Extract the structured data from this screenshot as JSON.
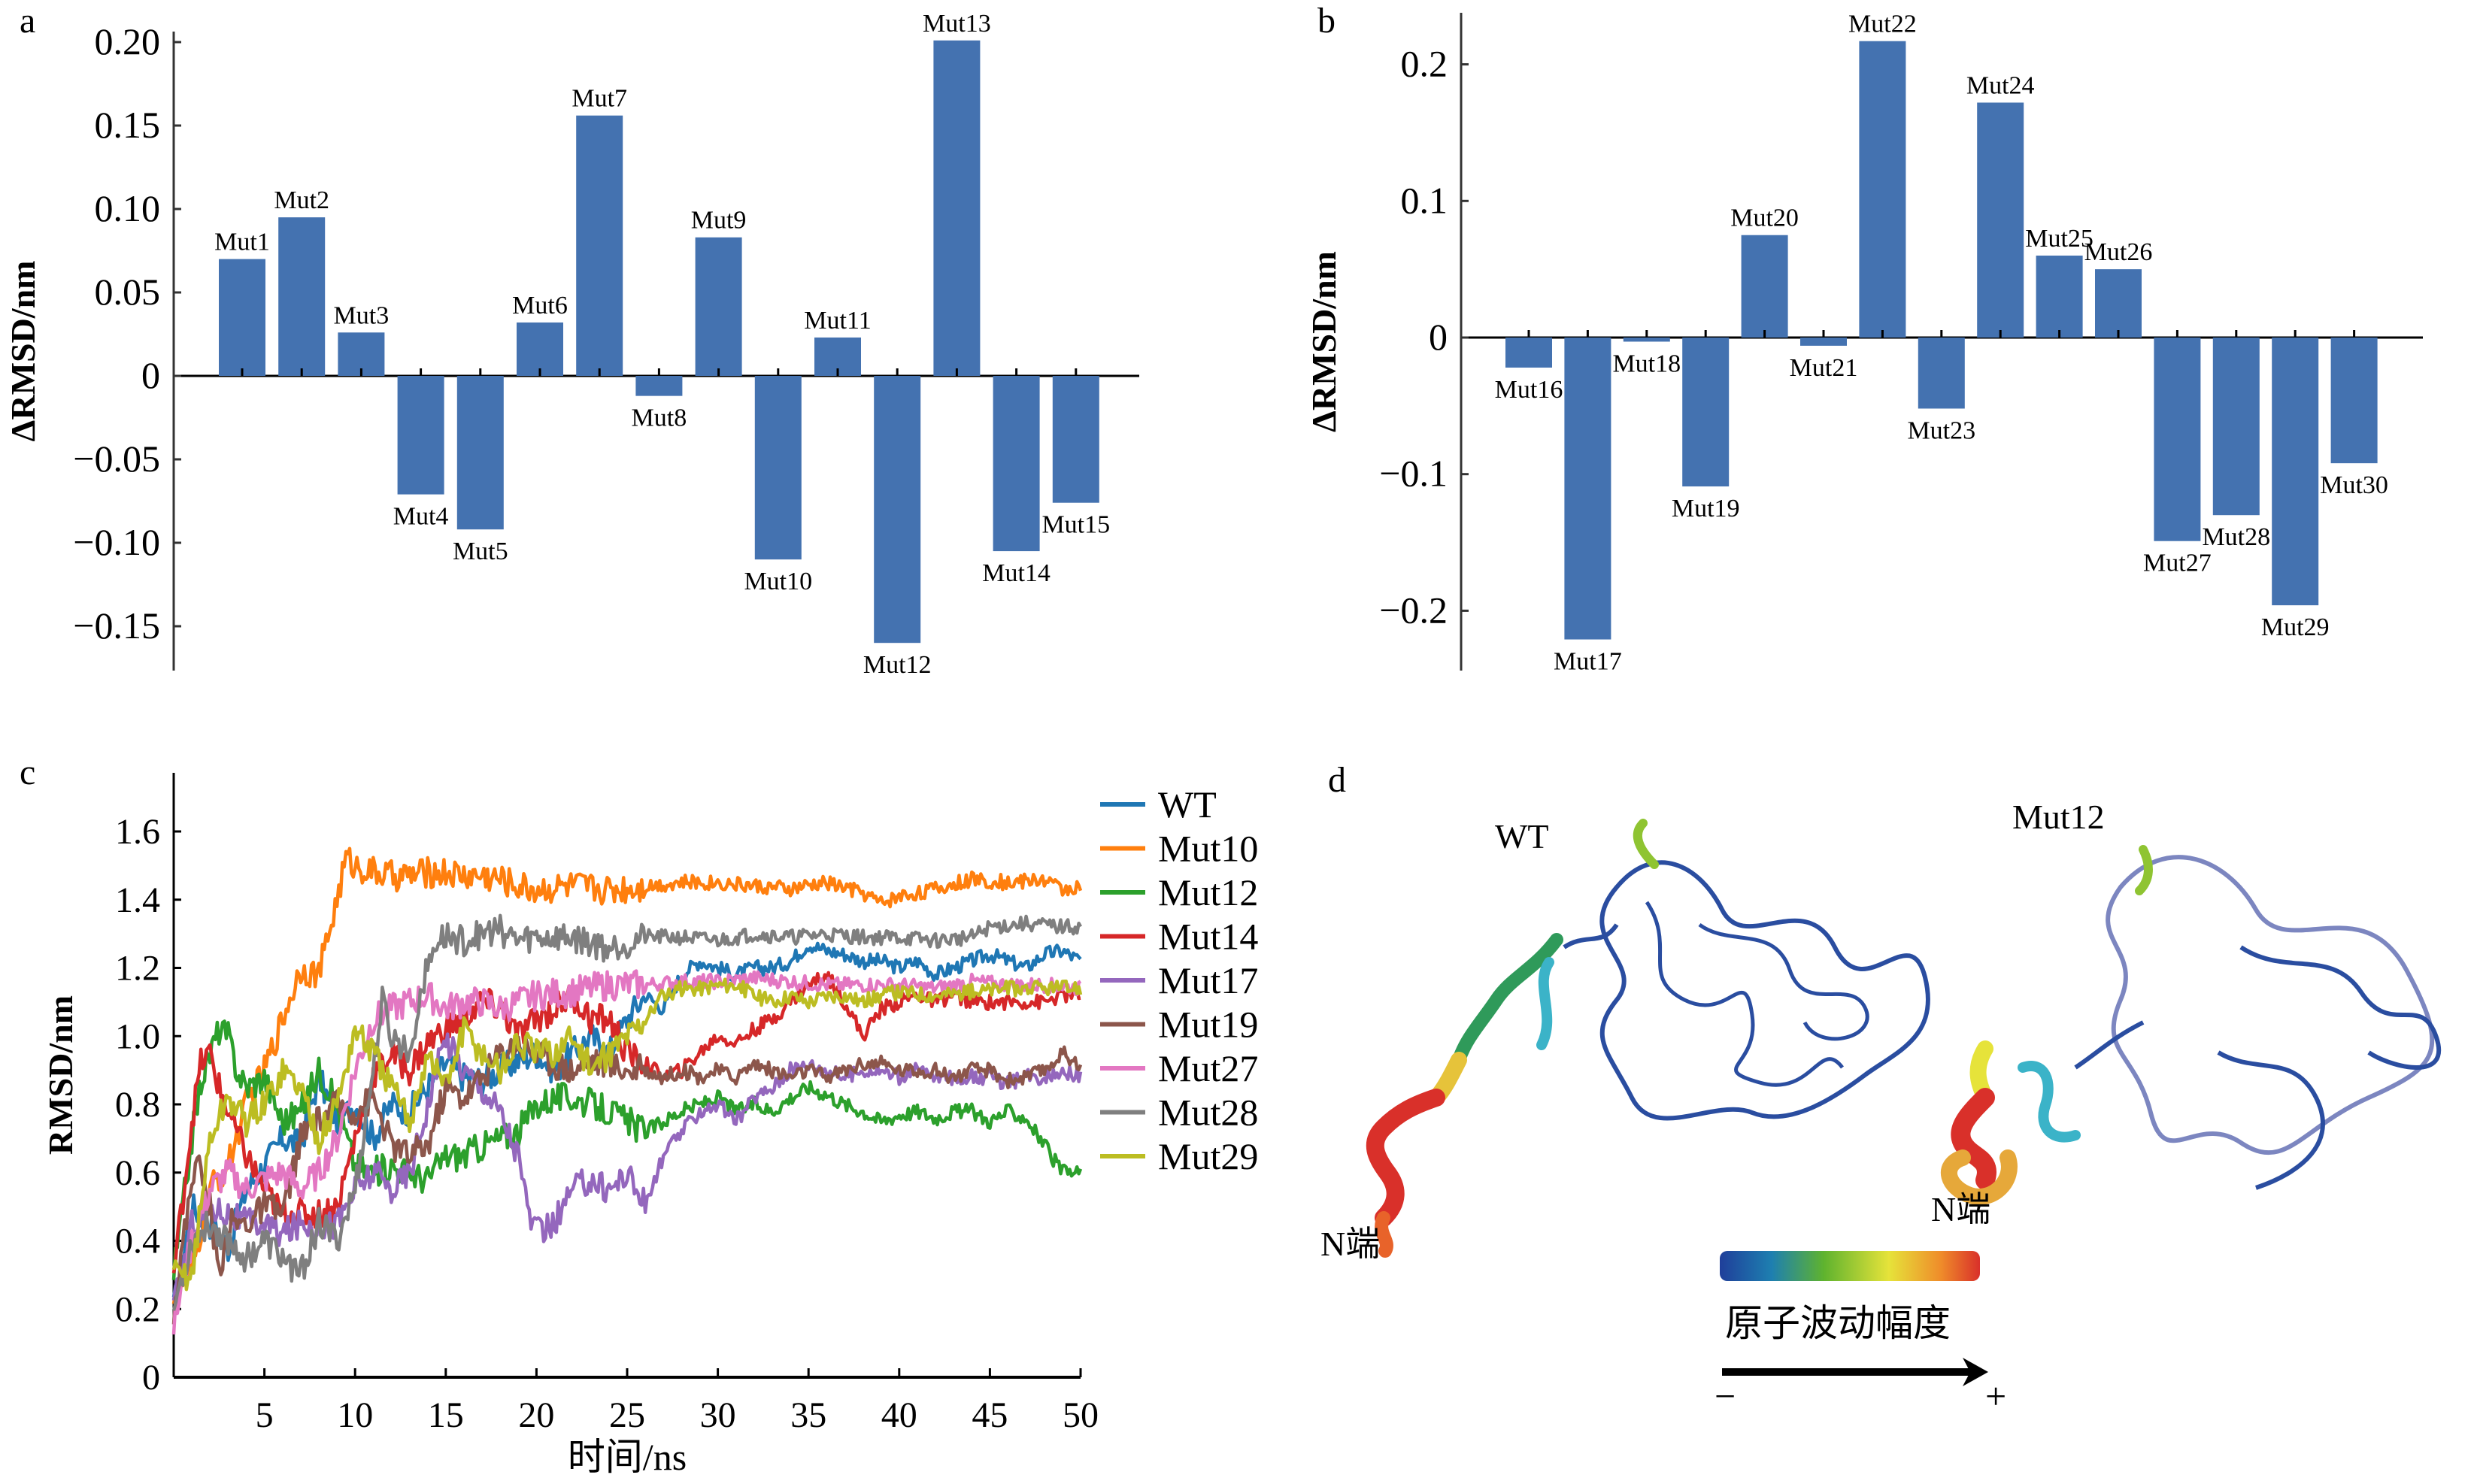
{
  "figure": {
    "panels": [
      "a",
      "b",
      "c",
      "d"
    ]
  },
  "chart_data": [
    {
      "panel": "a",
      "type": "bar",
      "title": "",
      "xlabel": "",
      "ylabel": "ΔRMSD/nm",
      "ylim": [
        -0.17,
        0.22
      ],
      "yticks": [
        -0.15,
        -0.1,
        -0.05,
        0,
        0.05,
        0.1,
        0.15,
        0.2
      ],
      "ytick_labels": [
        "−0.15",
        "−0.10",
        "−0.05",
        "0",
        "0.05",
        "0.10",
        "0.15",
        "0.20"
      ],
      "grid": false,
      "bar_color": "#4472b0",
      "categories": [
        "Mut1",
        "Mut2",
        "Mut3",
        "Mut4",
        "Mut5",
        "Mut6",
        "Mut7",
        "Mut8",
        "Mut9",
        "Mut10",
        "Mut11",
        "Mut12",
        "Mut13",
        "Mut14",
        "Mut15"
      ],
      "values": [
        0.07,
        0.095,
        0.026,
        -0.071,
        -0.092,
        0.032,
        0.156,
        -0.012,
        0.083,
        -0.11,
        0.023,
        -0.16,
        0.201,
        -0.105,
        -0.076
      ]
    },
    {
      "panel": "b",
      "type": "bar",
      "title": "",
      "xlabel": "",
      "ylabel": "ΔRMSD/nm",
      "ylim": [
        -0.24,
        0.24
      ],
      "yticks": [
        -0.2,
        -0.1,
        0,
        0.1,
        0.2
      ],
      "ytick_labels": [
        "−0.2",
        "−0.1",
        "0",
        "0.1",
        "0.2"
      ],
      "grid": false,
      "bar_color": "#4472b0",
      "categories": [
        "Mut16",
        "Mut17",
        "Mut18",
        "Mut19",
        "Mut20",
        "Mut21",
        "Mut22",
        "Mut23",
        "Mut24",
        "Mut25",
        "Mut26",
        "Mut27",
        "Mut28",
        "Mut29",
        "Mut30"
      ],
      "values": [
        -0.022,
        -0.221,
        -0.003,
        -0.109,
        0.075,
        -0.006,
        0.217,
        -0.052,
        0.172,
        0.06,
        0.05,
        -0.149,
        -0.13,
        -0.196,
        -0.092
      ]
    },
    {
      "panel": "c",
      "type": "line",
      "title": "",
      "xlabel": "时间/ns",
      "ylabel": "RMSD/nm",
      "xlim": [
        0,
        50
      ],
      "ylim": [
        0,
        1.75
      ],
      "xticks": [
        5,
        10,
        15,
        20,
        25,
        30,
        35,
        40,
        45,
        50
      ],
      "yticks": [
        0,
        0.2,
        0.4,
        0.6,
        0.8,
        1.0,
        1.2,
        1.4,
        1.6
      ],
      "ytick_labels": [
        "0",
        "0.2",
        "0.4",
        "0.6",
        "0.8",
        "1.0",
        "1.2",
        "1.4",
        "1.6"
      ],
      "grid": false,
      "legend_position": "right",
      "series": [
        {
          "name": "WT",
          "color": "#1f77b4",
          "x": [
            0,
            1,
            2,
            3,
            4,
            5,
            6,
            7,
            8,
            9,
            10,
            11,
            12,
            13,
            14,
            15,
            16,
            17,
            18,
            19,
            20,
            21,
            22,
            23,
            24,
            25,
            26,
            27,
            28,
            29,
            30,
            31,
            32,
            33,
            34,
            35,
            36,
            37,
            38,
            39,
            40,
            41,
            42,
            43,
            44,
            45,
            46,
            47,
            48,
            49,
            50
          ],
          "y": [
            0.2,
            0.5,
            0.45,
            0.38,
            0.55,
            0.62,
            0.7,
            0.68,
            0.88,
            0.75,
            0.8,
            0.7,
            0.8,
            0.78,
            0.85,
            0.92,
            0.88,
            0.87,
            0.9,
            0.93,
            0.95,
            0.9,
            0.95,
            1.0,
            0.95,
            1.05,
            1.12,
            1.08,
            1.18,
            1.22,
            1.2,
            1.18,
            1.2,
            1.2,
            1.22,
            1.27,
            1.25,
            1.24,
            1.22,
            1.22,
            1.2,
            1.22,
            1.18,
            1.2,
            1.22,
            1.24,
            1.22,
            1.2,
            1.24,
            1.25,
            1.22
          ]
        },
        {
          "name": "Mut10",
          "color": "#ff7f0e",
          "x": [
            0,
            1,
            2,
            3,
            4,
            5,
            6,
            7,
            8,
            9,
            9.5,
            10,
            11,
            12,
            13,
            14,
            15,
            16,
            17,
            18,
            19,
            20,
            22,
            24,
            26,
            28,
            30,
            32,
            34,
            36,
            38,
            39,
            40,
            42,
            44,
            46,
            48,
            49,
            50
          ],
          "y": [
            0.25,
            0.3,
            0.55,
            0.62,
            0.8,
            0.9,
            1.05,
            1.2,
            1.18,
            1.4,
            1.52,
            1.5,
            1.48,
            1.47,
            1.47,
            1.48,
            1.48,
            1.47,
            1.47,
            1.46,
            1.44,
            1.43,
            1.44,
            1.43,
            1.44,
            1.45,
            1.45,
            1.44,
            1.43,
            1.45,
            1.42,
            1.39,
            1.41,
            1.43,
            1.46,
            1.45,
            1.46,
            1.43,
            1.44
          ]
        },
        {
          "name": "Mut12",
          "color": "#2ca02c",
          "x": [
            0,
            1,
            1.5,
            2,
            2.5,
            3,
            3.5,
            4,
            5,
            6,
            7,
            8,
            9,
            10,
            11,
            12,
            13,
            14,
            15,
            16,
            17,
            18,
            19,
            20,
            21,
            22,
            23,
            24,
            25,
            26,
            27,
            28,
            29,
            30,
            31,
            32,
            33,
            34,
            35,
            36,
            37,
            38,
            39,
            40,
            41,
            42,
            43,
            44,
            45,
            46,
            47,
            48,
            49,
            50
          ],
          "y": [
            0.3,
            0.7,
            0.87,
            0.95,
            1.02,
            1.0,
            0.9,
            0.85,
            0.88,
            0.75,
            0.78,
            0.9,
            0.8,
            0.62,
            0.6,
            0.62,
            0.6,
            0.58,
            0.65,
            0.65,
            0.68,
            0.7,
            0.72,
            0.8,
            0.82,
            0.82,
            0.8,
            0.78,
            0.75,
            0.72,
            0.75,
            0.78,
            0.8,
            0.82,
            0.78,
            0.8,
            0.78,
            0.82,
            0.85,
            0.83,
            0.8,
            0.78,
            0.75,
            0.77,
            0.78,
            0.76,
            0.78,
            0.78,
            0.75,
            0.78,
            0.76,
            0.68,
            0.6,
            0.6
          ]
        },
        {
          "name": "Mut14",
          "color": "#d62728",
          "x": [
            0,
            1,
            1.5,
            2,
            2.5,
            3,
            4,
            5,
            6,
            7,
            8,
            9,
            10,
            11,
            12,
            13,
            14,
            15,
            16,
            17,
            18,
            19,
            20,
            21,
            22,
            23,
            24,
            25,
            26,
            27,
            28,
            29,
            30,
            31,
            32,
            33,
            34,
            35,
            36,
            37,
            38,
            39,
            40,
            41,
            42,
            43,
            44,
            45,
            46,
            47,
            48,
            49,
            50
          ],
          "y": [
            0.3,
            0.75,
            0.92,
            0.95,
            0.85,
            0.78,
            0.65,
            0.55,
            0.48,
            0.48,
            0.48,
            0.5,
            0.7,
            0.88,
            0.95,
            0.9,
            0.98,
            1.02,
            1.05,
            1.1,
            1.08,
            1.0,
            1.05,
            1.08,
            1.12,
            1.05,
            1.05,
            0.95,
            0.92,
            0.88,
            0.9,
            0.95,
            1.0,
            0.98,
            1.02,
            1.05,
            1.1,
            1.15,
            1.18,
            1.1,
            1.0,
            1.08,
            1.1,
            1.12,
            1.1,
            1.12,
            1.1,
            1.1,
            1.1,
            1.1,
            1.1,
            1.12,
            1.12
          ]
        },
        {
          "name": "Mut17",
          "color": "#9467bd",
          "x": [
            0,
            1,
            2,
            3,
            4,
            5,
            6,
            7,
            8,
            9,
            10,
            11,
            12,
            13,
            14,
            15,
            16,
            17,
            18,
            19,
            19.5,
            20,
            21,
            22,
            23,
            24,
            25,
            26,
            27,
            28,
            29,
            30,
            31,
            32,
            33,
            34,
            35,
            36,
            37,
            38,
            39,
            40,
            41,
            42,
            43,
            44,
            45,
            46,
            47,
            48,
            49,
            50
          ],
          "y": [
            0.2,
            0.45,
            0.5,
            0.48,
            0.45,
            0.45,
            0.42,
            0.45,
            0.45,
            0.45,
            0.55,
            0.6,
            0.55,
            0.6,
            0.8,
            1.0,
            0.9,
            0.85,
            0.78,
            0.65,
            0.5,
            0.42,
            0.45,
            0.55,
            0.58,
            0.55,
            0.6,
            0.5,
            0.65,
            0.72,
            0.78,
            0.8,
            0.75,
            0.82,
            0.85,
            0.9,
            0.92,
            0.9,
            0.88,
            0.9,
            0.9,
            0.88,
            0.9,
            0.88,
            0.88,
            0.88,
            0.88,
            0.86,
            0.88,
            0.88,
            0.9,
            0.88
          ]
        },
        {
          "name": "Mut19",
          "color": "#8c564b",
          "x": [
            0,
            0.8,
            1.2,
            2,
            2.5,
            3,
            4,
            5,
            6,
            7,
            8,
            9,
            10,
            11,
            12,
            13,
            14,
            15,
            16,
            17,
            18,
            19,
            20,
            21,
            22,
            23,
            24,
            25,
            26,
            27,
            28,
            29,
            30,
            31,
            32,
            33,
            34,
            35,
            36,
            37,
            38,
            39,
            40,
            41,
            42,
            43,
            44,
            45,
            46,
            47,
            48,
            49,
            50
          ],
          "y": [
            0.2,
            0.5,
            0.65,
            0.5,
            0.3,
            0.45,
            0.45,
            0.5,
            0.48,
            0.7,
            0.75,
            0.8,
            0.78,
            0.82,
            0.68,
            0.65,
            0.68,
            0.85,
            0.82,
            0.88,
            0.95,
            0.98,
            0.95,
            0.92,
            0.9,
            0.93,
            0.92,
            0.9,
            0.9,
            0.88,
            0.9,
            0.88,
            0.9,
            0.88,
            0.92,
            0.9,
            0.88,
            0.9,
            0.88,
            0.9,
            0.92,
            0.92,
            0.9,
            0.9,
            0.9,
            0.88,
            0.9,
            0.9,
            0.87,
            0.88,
            0.9,
            0.95,
            0.92
          ]
        },
        {
          "name": "Mut27",
          "color": "#e377c2",
          "x": [
            0,
            1,
            2,
            3,
            4,
            5,
            6,
            7,
            8,
            9,
            10,
            11,
            12,
            13,
            14,
            15,
            16,
            17,
            18,
            19,
            20,
            22,
            24,
            26,
            28,
            30,
            32,
            34,
            36,
            38,
            40,
            42,
            44,
            46,
            48,
            50
          ],
          "y": [
            0.15,
            0.4,
            0.55,
            0.6,
            0.55,
            0.58,
            0.6,
            0.55,
            0.6,
            0.7,
            0.9,
            1.05,
            1.08,
            1.1,
            1.12,
            1.08,
            1.1,
            1.1,
            1.08,
            1.1,
            1.12,
            1.13,
            1.15,
            1.15,
            1.16,
            1.16,
            1.17,
            1.16,
            1.15,
            1.15,
            1.15,
            1.14,
            1.16,
            1.15,
            1.15,
            1.14
          ]
        },
        {
          "name": "Mut28",
          "color": "#7f7f7f",
          "x": [
            0,
            1,
            2,
            3,
            4,
            5,
            6,
            7,
            8,
            9,
            10,
            11,
            11.5,
            12,
            13,
            13.5,
            14,
            14.5,
            15,
            16,
            17,
            18,
            19,
            20,
            22,
            24,
            26,
            28,
            30,
            32,
            34,
            36,
            38,
            40,
            42,
            44,
            45,
            47,
            49,
            50
          ],
          "y": [
            0.2,
            0.4,
            0.45,
            0.4,
            0.35,
            0.4,
            0.35,
            0.3,
            0.45,
            0.4,
            0.55,
            0.9,
            1.1,
            1.0,
            0.95,
            1.1,
            1.2,
            1.28,
            1.29,
            1.28,
            1.3,
            1.31,
            1.28,
            1.29,
            1.29,
            1.26,
            1.29,
            1.29,
            1.28,
            1.3,
            1.29,
            1.3,
            1.29,
            1.29,
            1.28,
            1.29,
            1.32,
            1.33,
            1.32,
            1.32
          ]
        },
        {
          "name": "Mut29",
          "color": "#bcbd22",
          "x": [
            0,
            1,
            2,
            3,
            4,
            5,
            6,
            7,
            8,
            9,
            10,
            11,
            12,
            13,
            14,
            15,
            16,
            17,
            18,
            19,
            20,
            21,
            22,
            23,
            24,
            25,
            26,
            27,
            28,
            29,
            30,
            31,
            32,
            33,
            34,
            35,
            36,
            37,
            38,
            39,
            40,
            42,
            44,
            46,
            48,
            50
          ],
          "y": [
            0.3,
            0.3,
            0.7,
            0.82,
            0.75,
            0.8,
            0.9,
            0.85,
            0.7,
            0.8,
            1.02,
            0.95,
            0.85,
            0.75,
            0.95,
            0.85,
            1.02,
            0.95,
            0.9,
            0.98,
            0.95,
            0.95,
            1.0,
            0.9,
            0.95,
            1.0,
            1.05,
            1.12,
            1.14,
            1.14,
            1.15,
            1.15,
            1.12,
            1.1,
            1.12,
            1.1,
            1.12,
            1.12,
            1.1,
            1.12,
            1.13,
            1.12,
            1.13,
            1.14,
            1.14,
            1.14
          ]
        }
      ]
    }
  ],
  "panel_d": {
    "wt_label": "WT",
    "mut_label": "Mut12",
    "nterm_label_left": "N端",
    "nterm_label_right": "N端",
    "colorbar_label": "原子波动幅度",
    "colorbar_colors": [
      "#1f3f9a",
      "#1e9a3a",
      "#8fc432",
      "#e6e33a",
      "#ef8c2a",
      "#d9302a"
    ],
    "arrow_minus": "−",
    "arrow_plus": "+",
    "backbone_color": "#2a4da0",
    "backbone_faded_color": "#7c86c0"
  }
}
